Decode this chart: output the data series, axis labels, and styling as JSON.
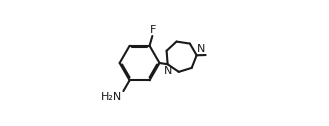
{
  "background_color": "#ffffff",
  "line_color": "#1a1a1a",
  "line_width": 1.5,
  "font_size_label": 8.0,
  "F_label": "F",
  "N_label": "N",
  "N4_label": "N",
  "NH2_label": "H₂N",
  "fig_width": 3.29,
  "fig_height": 1.26
}
